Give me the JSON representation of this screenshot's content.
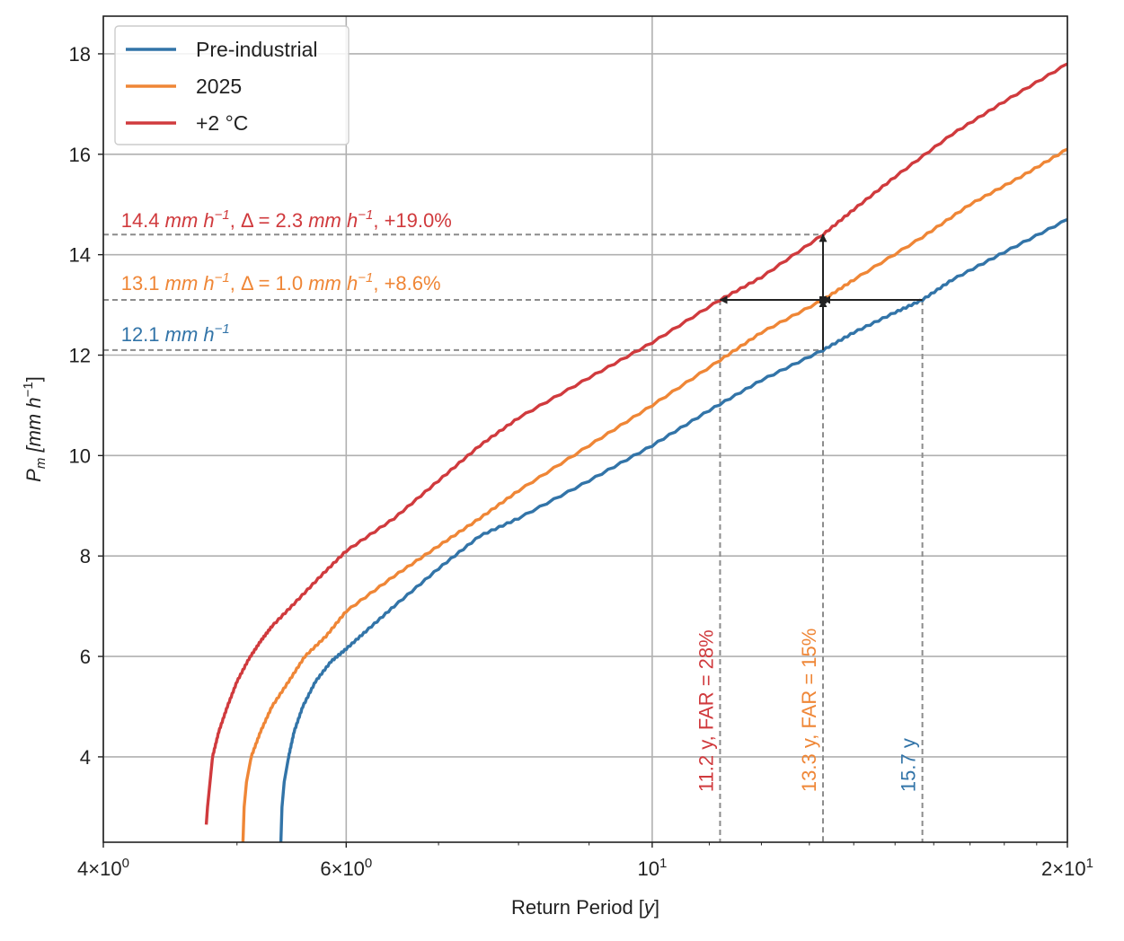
{
  "chart_data": {
    "type": "line",
    "xscale": "log",
    "xlim": [
      4,
      20
    ],
    "ylim": [
      2.3,
      18.75
    ],
    "xlabel_main": "Return Period [",
    "xlabel_unit": "y",
    "xlabel_end": "]",
    "ylabel_main": "P",
    "ylabel_sub": "m",
    "ylabel_unit": " [mm h",
    "ylabel_sup": "−1",
    "ylabel_end": "]",
    "x_ticks": [
      {
        "value": 4,
        "base": "4×10",
        "exp": "0"
      },
      {
        "value": 6,
        "base": "6×10",
        "exp": "0"
      },
      {
        "value": 10,
        "base": "10",
        "exp": "1"
      },
      {
        "value": 20,
        "base": "2×10",
        "exp": "1"
      }
    ],
    "x_minor_ticks": [
      5,
      7,
      8,
      9,
      11,
      12,
      13,
      14,
      15,
      16,
      17,
      18,
      19
    ],
    "y_ticks": [
      4,
      6,
      8,
      10,
      12,
      14,
      16,
      18
    ],
    "series": [
      {
        "name": "Pre-industrial",
        "color": "#3274a8",
        "x": [
          5.38,
          5.39,
          5.41,
          5.45,
          5.5,
          5.58,
          5.7,
          5.85,
          6.0,
          6.2,
          6.5,
          7.0,
          7.5,
          8.0,
          9.0,
          10.0,
          11.0,
          12.0,
          13.3,
          14.0,
          15.0,
          15.7,
          16.5,
          18.0,
          20.0
        ],
        "values": [
          2.3,
          3.0,
          3.5,
          4.0,
          4.5,
          5.0,
          5.5,
          5.9,
          6.15,
          6.5,
          7.0,
          7.75,
          8.4,
          8.75,
          9.5,
          10.2,
          10.9,
          11.5,
          12.1,
          12.45,
          12.85,
          13.1,
          13.5,
          14.05,
          14.7
        ]
      },
      {
        "name": "2025",
        "color": "#ef8636",
        "x": [
          5.05,
          5.06,
          5.08,
          5.12,
          5.2,
          5.3,
          5.45,
          5.6,
          5.8,
          6.0,
          6.5,
          7.0,
          7.5,
          8.0,
          9.0,
          10.0,
          11.2,
          12.0,
          13.3,
          14.0,
          15.7,
          17.0,
          18.5,
          20.0
        ],
        "values": [
          2.3,
          3.0,
          3.5,
          4.0,
          4.5,
          5.0,
          5.5,
          6.0,
          6.4,
          6.9,
          7.6,
          8.2,
          8.75,
          9.3,
          10.2,
          11.0,
          11.9,
          12.45,
          13.1,
          13.5,
          14.35,
          15.0,
          15.55,
          16.1
        ]
      },
      {
        "name": "+2 °C",
        "color": "#d03a3d",
        "x": [
          4.75,
          4.76,
          4.78,
          4.8,
          4.85,
          4.92,
          5.0,
          5.1,
          5.2,
          5.3,
          5.5,
          5.75,
          6.0,
          6.5,
          7.0,
          7.5,
          8.0,
          9.0,
          10.0,
          11.2,
          12.0,
          13.3,
          14.0,
          15.0,
          16.5,
          18.0,
          20.0
        ],
        "values": [
          2.65,
          3.0,
          3.5,
          4.0,
          4.5,
          5.0,
          5.5,
          5.95,
          6.3,
          6.6,
          7.05,
          7.6,
          8.1,
          8.75,
          9.5,
          10.2,
          10.75,
          11.55,
          12.25,
          13.1,
          13.55,
          14.4,
          14.9,
          15.55,
          16.4,
          17.05,
          17.8
        ]
      }
    ],
    "legend": {
      "position": "top-left",
      "entries": [
        "Pre-industrial",
        "2025",
        "+2 °C"
      ]
    },
    "hlines": [
      {
        "y": 14.4,
        "x_end": 13.3
      },
      {
        "y": 13.1,
        "x_end": 11.2
      },
      {
        "y": 12.1,
        "x_end": 13.3
      }
    ],
    "vlines": [
      {
        "x": 11.2,
        "y_top": 13.1
      },
      {
        "x": 13.3,
        "y_top": 14.4
      },
      {
        "x": 15.7,
        "y_top": 13.1
      }
    ],
    "arrows": [
      {
        "from": [
          15.7,
          13.1
        ],
        "to": [
          13.3,
          13.1
        ]
      },
      {
        "from": [
          13.3,
          13.1
        ],
        "to": [
          11.2,
          13.1
        ]
      },
      {
        "from": [
          13.3,
          12.1
        ],
        "to": [
          13.3,
          13.1
        ]
      },
      {
        "from": [
          13.3,
          13.1
        ],
        "to": [
          13.3,
          14.4
        ]
      }
    ],
    "marker": {
      "x": 13.3,
      "y": 13.1
    },
    "annotations": [
      {
        "id": "ann-red",
        "color": "#d03a3d",
        "x": 4.12,
        "y": 14.55,
        "parts": [
          {
            "t": "14.4 "
          },
          {
            "t": "mm h",
            "i": true
          },
          {
            "t": "−1",
            "i": true,
            "sup": true
          },
          {
            "t": ", Δ = 2.3 "
          },
          {
            "t": "mm h",
            "i": true
          },
          {
            "t": "−1",
            "i": true,
            "sup": true
          },
          {
            "t": ", +19.0%"
          }
        ]
      },
      {
        "id": "ann-orange",
        "color": "#ef8636",
        "x": 4.12,
        "y": 13.3,
        "parts": [
          {
            "t": "13.1 "
          },
          {
            "t": "mm h",
            "i": true
          },
          {
            "t": "−1",
            "i": true,
            "sup": true
          },
          {
            "t": ", Δ = 1.0 "
          },
          {
            "t": "mm h",
            "i": true
          },
          {
            "t": "−1",
            "i": true,
            "sup": true
          },
          {
            "t": ", +8.6%"
          }
        ]
      },
      {
        "id": "ann-blue",
        "color": "#3274a8",
        "x": 4.12,
        "y": 12.28,
        "parts": [
          {
            "t": "12.1 "
          },
          {
            "t": "mm h",
            "i": true
          },
          {
            "t": "−1",
            "i": true,
            "sup": true
          }
        ]
      }
    ],
    "vertical_annotations": [
      {
        "id": "vann-red",
        "text": "11.2 y, FAR = 28%",
        "color": "#d03a3d",
        "x": 11.2,
        "y": 3.3
      },
      {
        "id": "vann-orange",
        "text": "13.3 y, FAR = 15%",
        "color": "#ef8636",
        "x": 13.3,
        "y": 3.3
      },
      {
        "id": "vann-blue",
        "text": "15.7 y",
        "color": "#3274a8",
        "x": 15.7,
        "y": 3.3
      }
    ]
  }
}
